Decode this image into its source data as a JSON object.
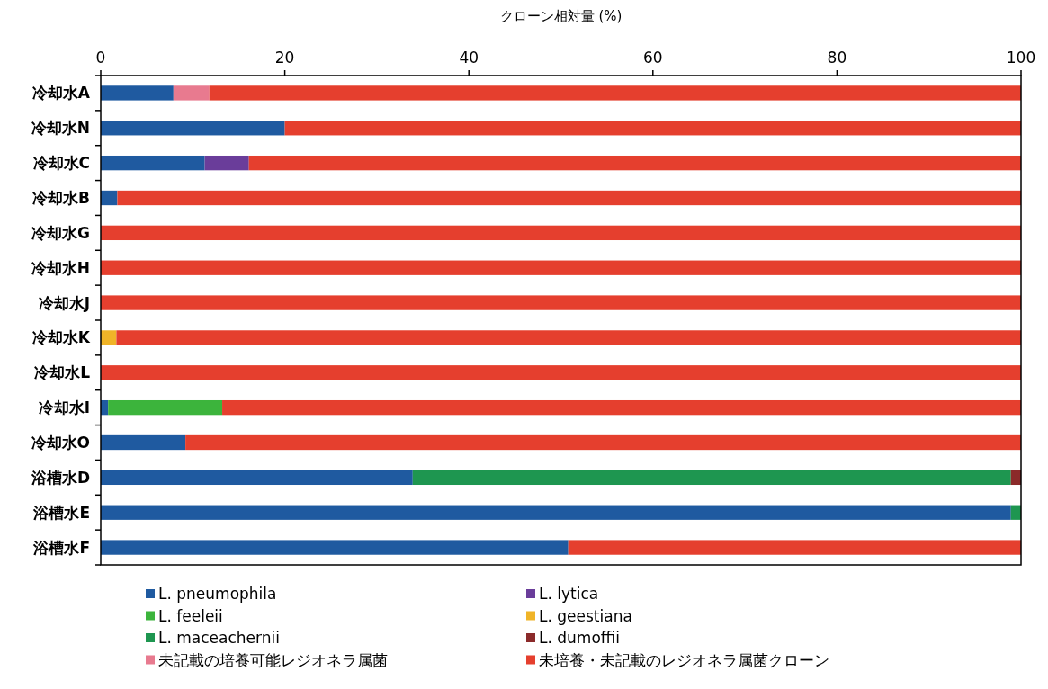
{
  "chart_data": {
    "type": "bar",
    "orientation": "horizontal",
    "stacked": true,
    "xlabel": "クローン相対量 (%)",
    "categories": [
      "冷却水A",
      "冷却水N",
      "冷却水C",
      "冷却水B",
      "冷却水G",
      "冷却水H",
      "冷却水J",
      "冷却水K",
      "冷却水L",
      "冷却水I",
      "冷却水O",
      "浴槽水D",
      "浴槽水E",
      "浴槽水F"
    ],
    "xlim": [
      0,
      100
    ],
    "xticks": [
      0,
      20,
      40,
      60,
      80,
      100
    ],
    "grid": false,
    "legend": "bottom",
    "series": [
      {
        "name": "L. pneumophila",
        "color": "#1f5aa0",
        "values": [
          7.9,
          20.0,
          11.3,
          1.8,
          null,
          null,
          null,
          null,
          null,
          0.8,
          9.2,
          33.9,
          98.9,
          50.8
        ]
      },
      {
        "name": "L. lytica",
        "color": "#6a3d9a",
        "values": [
          null,
          null,
          4.8,
          null,
          null,
          null,
          null,
          null,
          null,
          null,
          null,
          null,
          null,
          null
        ]
      },
      {
        "name": "L. feeleii",
        "color": "#3cb43c",
        "values": [
          null,
          null,
          null,
          null,
          null,
          null,
          null,
          null,
          null,
          12.4,
          null,
          null,
          null,
          null
        ]
      },
      {
        "name": "L. geestiana",
        "color": "#f0b428",
        "values": [
          null,
          null,
          null,
          null,
          null,
          null,
          null,
          1.7,
          null,
          null,
          null,
          null,
          null,
          null
        ]
      },
      {
        "name": "L. maceachernii",
        "color": "#1e9650",
        "values": [
          null,
          null,
          null,
          null,
          null,
          null,
          null,
          null,
          null,
          null,
          null,
          65.0,
          1.1,
          null
        ]
      },
      {
        "name": "L. dumoffii",
        "color": "#8b2a2a",
        "values": [
          null,
          null,
          null,
          null,
          null,
          null,
          null,
          null,
          null,
          null,
          null,
          1.1,
          null,
          null
        ]
      },
      {
        "name": "未記載の培養可能レジオネラ属菌",
        "color": "#e87a8f",
        "values": [
          3.9,
          null,
          null,
          null,
          null,
          null,
          null,
          null,
          null,
          null,
          null,
          null,
          null,
          null
        ]
      },
      {
        "name": "未培養・未記載のレジオネラ属菌クローン",
        "color": "#e53f2e",
        "values": [
          88.2,
          80.0,
          83.9,
          98.2,
          100,
          100,
          100,
          98.3,
          100,
          86.8,
          90.8,
          null,
          null,
          49.2
        ]
      }
    ]
  }
}
